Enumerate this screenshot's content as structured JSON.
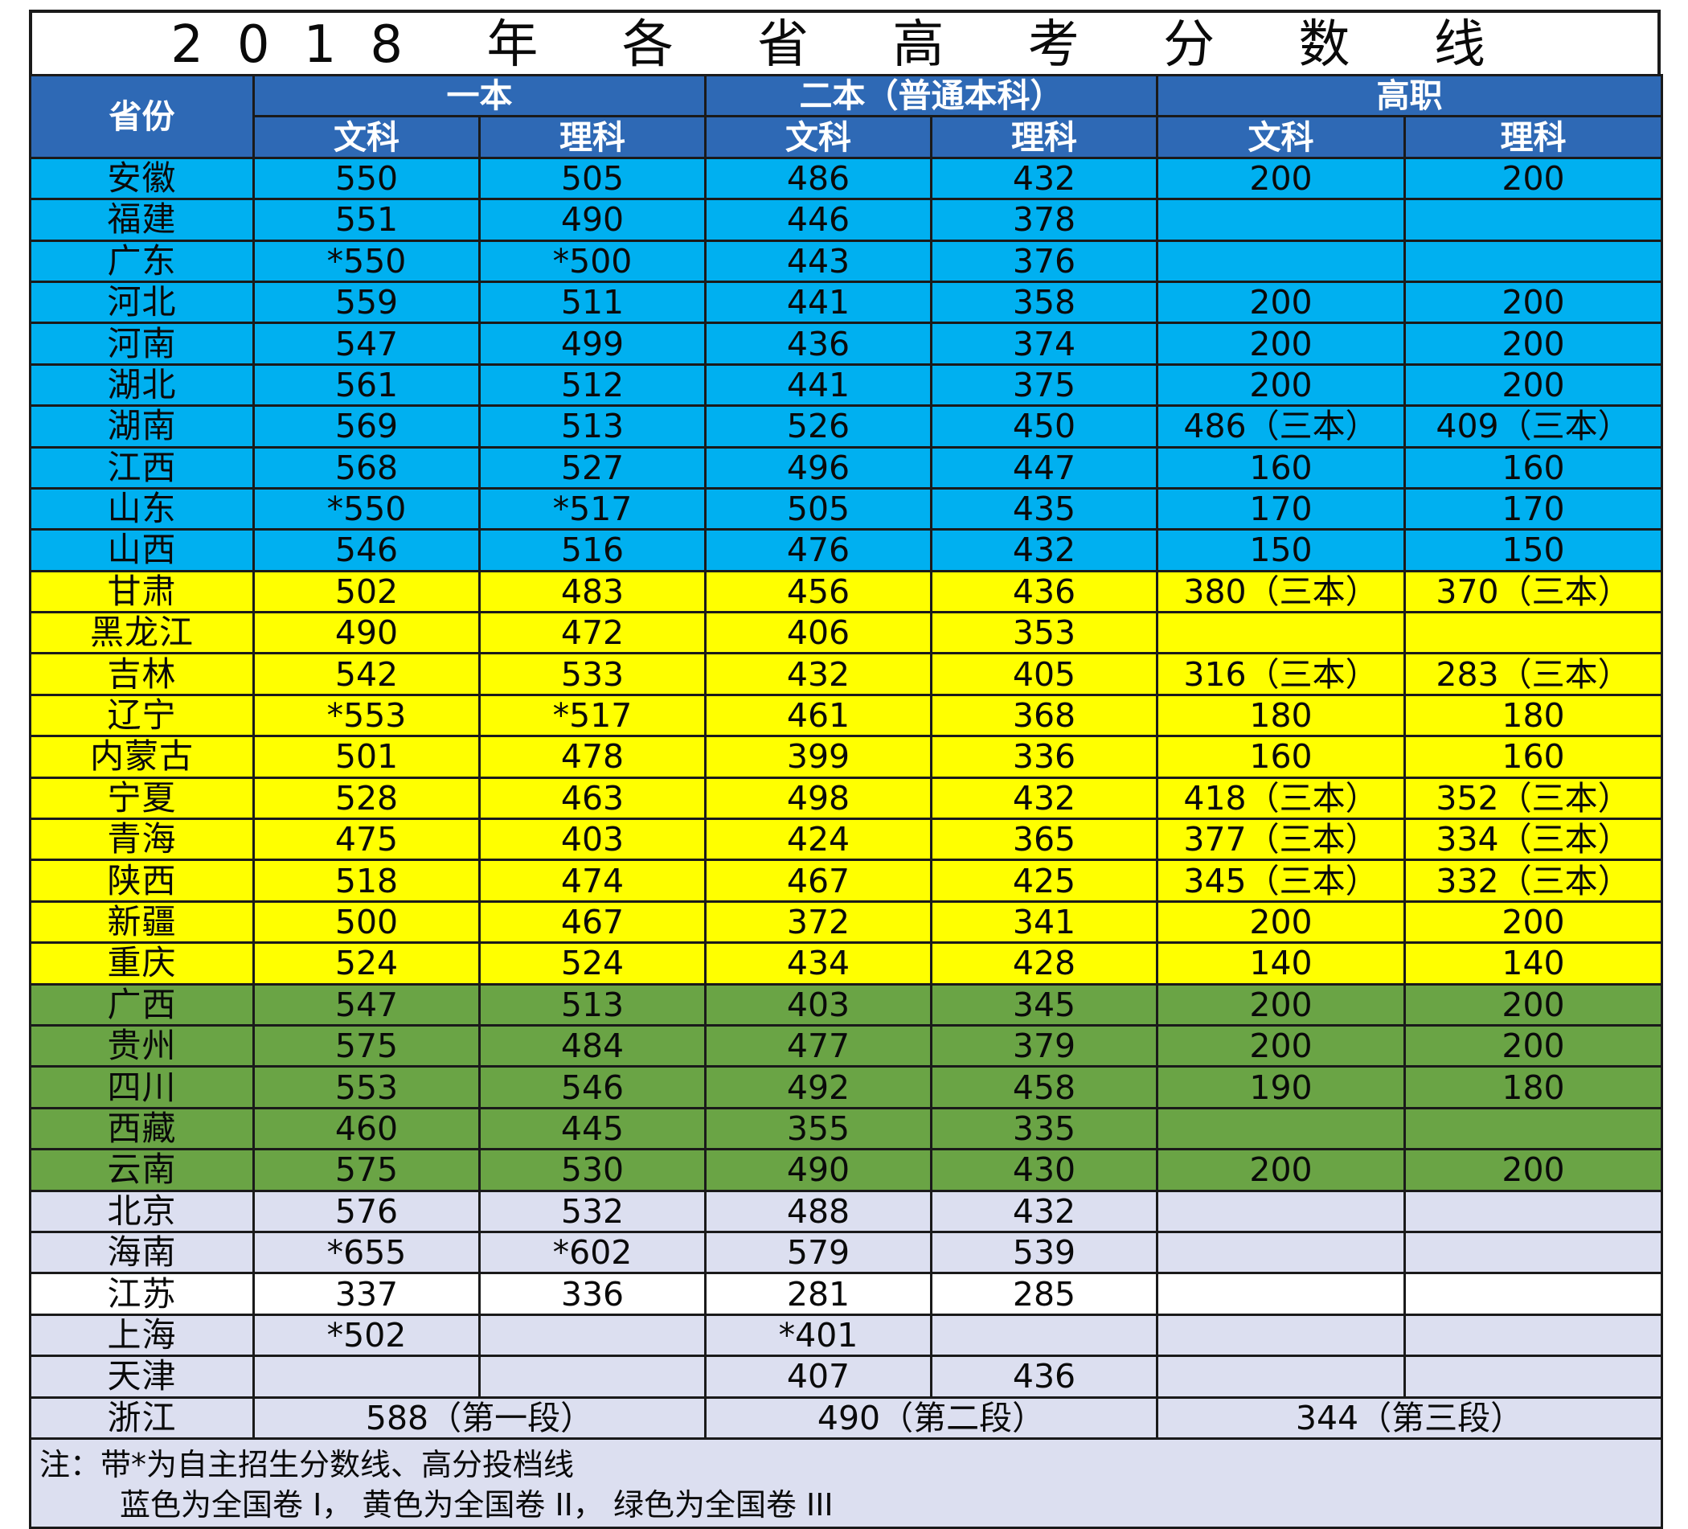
{
  "title": "2018 年 各 省 高 考 分 数 线",
  "header": {
    "province": "省份",
    "group1": "一本",
    "group2": "二本（普通本科）",
    "group3": "高职",
    "arts": "文科",
    "science": "理科"
  },
  "colors": {
    "header": "#2e69b5",
    "blue": "#00b0f0",
    "yellow": "#ffff00",
    "green": "#6aa445",
    "gray": "#dcdff0",
    "white": "#ffffff"
  },
  "rows": [
    {
      "province": "安徽",
      "color": "blue",
      "c1": "550",
      "c2": "505",
      "c3": "486",
      "c4": "432",
      "c5": "200",
      "c6": "200"
    },
    {
      "province": "福建",
      "color": "blue",
      "c1": "551",
      "c2": "490",
      "c3": "446",
      "c4": "378",
      "c5": "",
      "c6": ""
    },
    {
      "province": "广东",
      "color": "blue",
      "c1": "*550",
      "c2": "*500",
      "c3": "443",
      "c4": "376",
      "c5": "",
      "c6": ""
    },
    {
      "province": "河北",
      "color": "blue",
      "c1": "559",
      "c2": "511",
      "c3": "441",
      "c4": "358",
      "c5": "200",
      "c6": "200"
    },
    {
      "province": "河南",
      "color": "blue",
      "c1": "547",
      "c2": "499",
      "c3": "436",
      "c4": "374",
      "c5": "200",
      "c6": "200"
    },
    {
      "province": "湖北",
      "color": "blue",
      "c1": "561",
      "c2": "512",
      "c3": "441",
      "c4": "375",
      "c5": "200",
      "c6": "200"
    },
    {
      "province": "湖南",
      "color": "blue",
      "c1": "569",
      "c2": "513",
      "c3": "526",
      "c4": "450",
      "c5": "486（三本）",
      "c6": "409（三本）"
    },
    {
      "province": "江西",
      "color": "blue",
      "c1": "568",
      "c2": "527",
      "c3": "496",
      "c4": "447",
      "c5": "160",
      "c6": "160"
    },
    {
      "province": "山东",
      "color": "blue",
      "c1": "*550",
      "c2": "*517",
      "c3": "505",
      "c4": "435",
      "c5": "170",
      "c6": "170"
    },
    {
      "province": "山西",
      "color": "blue",
      "c1": "546",
      "c2": "516",
      "c3": "476",
      "c4": "432",
      "c5": "150",
      "c6": "150"
    },
    {
      "province": "甘肃",
      "color": "yellow",
      "c1": "502",
      "c2": "483",
      "c3": "456",
      "c4": "436",
      "c5": "380（三本）",
      "c6": "370（三本）"
    },
    {
      "province": "黑龙江",
      "color": "yellow",
      "c1": "490",
      "c2": "472",
      "c3": "406",
      "c4": "353",
      "c5": "",
      "c6": ""
    },
    {
      "province": "吉林",
      "color": "yellow",
      "c1": "542",
      "c2": "533",
      "c3": "432",
      "c4": "405",
      "c5": "316（三本）",
      "c6": "283（三本）"
    },
    {
      "province": "辽宁",
      "color": "yellow",
      "c1": "*553",
      "c2": "*517",
      "c3": "461",
      "c4": "368",
      "c5": "180",
      "c6": "180"
    },
    {
      "province": "内蒙古",
      "color": "yellow",
      "c1": "501",
      "c2": "478",
      "c3": "399",
      "c4": "336",
      "c5": "160",
      "c6": "160"
    },
    {
      "province": "宁夏",
      "color": "yellow",
      "c1": "528",
      "c2": "463",
      "c3": "498",
      "c4": "432",
      "c5": "418（三本）",
      "c6": "352（三本）"
    },
    {
      "province": "青海",
      "color": "yellow",
      "c1": "475",
      "c2": "403",
      "c3": "424",
      "c4": "365",
      "c5": "377（三本）",
      "c6": "334（三本）"
    },
    {
      "province": "陕西",
      "color": "yellow",
      "c1": "518",
      "c2": "474",
      "c3": "467",
      "c4": "425",
      "c5": "345（三本）",
      "c6": "332（三本）"
    },
    {
      "province": "新疆",
      "color": "yellow",
      "c1": "500",
      "c2": "467",
      "c3": "372",
      "c4": "341",
      "c5": "200",
      "c6": "200"
    },
    {
      "province": "重庆",
      "color": "yellow",
      "c1": "524",
      "c2": "524",
      "c3": "434",
      "c4": "428",
      "c5": "140",
      "c6": "140"
    },
    {
      "province": "广西",
      "color": "green",
      "c1": "547",
      "c2": "513",
      "c3": "403",
      "c4": "345",
      "c5": "200",
      "c6": "200"
    },
    {
      "province": "贵州",
      "color": "green",
      "c1": "575",
      "c2": "484",
      "c3": "477",
      "c4": "379",
      "c5": "200",
      "c6": "200"
    },
    {
      "province": "四川",
      "color": "green",
      "c1": "553",
      "c2": "546",
      "c3": "492",
      "c4": "458",
      "c5": "190",
      "c6": "180"
    },
    {
      "province": "西藏",
      "color": "green",
      "c1": "460",
      "c2": "445",
      "c3": "355",
      "c4": "335",
      "c5": "",
      "c6": ""
    },
    {
      "province": "云南",
      "color": "green",
      "c1": "575",
      "c2": "530",
      "c3": "490",
      "c4": "430",
      "c5": "200",
      "c6": "200"
    },
    {
      "province": "北京",
      "color": "gray",
      "c1": "576",
      "c2": "532",
      "c3": "488",
      "c4": "432",
      "c5": "",
      "c6": ""
    },
    {
      "province": "海南",
      "color": "gray",
      "c1": "*655",
      "c2": "*602",
      "c3": "579",
      "c4": "539",
      "c5": "",
      "c6": ""
    },
    {
      "province": "江苏",
      "color": "white",
      "c1": "337",
      "c2": "336",
      "c3": "281",
      "c4": "285",
      "c5": "",
      "c6": ""
    },
    {
      "province": "上海",
      "color": "gray",
      "c1": "*502",
      "c2": "",
      "c3": "*401",
      "c4": "",
      "c5": "",
      "c6": ""
    },
    {
      "province": "天津",
      "color": "gray",
      "c1": "",
      "c2": "",
      "c3": "407",
      "c4": "436",
      "c5": "",
      "c6": ""
    }
  ],
  "zhejiang": {
    "province": "浙江",
    "tier1": "588（第一段）",
    "tier2": "490（第二段）",
    "tier3": "344（第三段）"
  },
  "note": {
    "line1": "注：带*为自主招生分数线、高分投档线",
    "line2": "蓝色为全国卷 I， 黄色为全国卷 II， 绿色为全国卷 III"
  }
}
